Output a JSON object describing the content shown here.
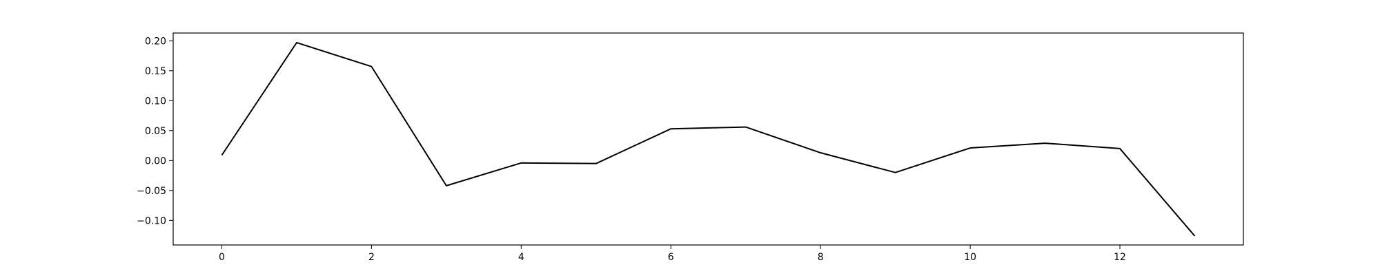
{
  "chart_data": {
    "type": "line",
    "title": "",
    "xlabel": "",
    "ylabel": "",
    "x": [
      0,
      1,
      2,
      3,
      4,
      5,
      6,
      7,
      8,
      9,
      10,
      11,
      12,
      13
    ],
    "series": [
      {
        "values": [
          0.009,
          0.197,
          0.157,
          -0.042,
          -0.004,
          -0.005,
          0.053,
          0.056,
          0.013,
          -0.02,
          0.021,
          0.029,
          0.02,
          -0.126
        ],
        "color": "#000000"
      }
    ],
    "xlim": [
      -0.65,
      13.65
    ],
    "ylim": [
      -0.141,
      0.213
    ],
    "xticks": [
      0,
      2,
      4,
      6,
      8,
      10,
      12
    ],
    "yticks": [
      -0.1,
      -0.05,
      0.0,
      0.05,
      0.1,
      0.15,
      0.2
    ],
    "xtick_labels": [
      "0",
      "2",
      "4",
      "6",
      "8",
      "10",
      "12"
    ],
    "ytick_labels": [
      "−0.10",
      "−0.05",
      "0.00",
      "0.05",
      "0.10",
      "0.15",
      "0.20"
    ],
    "grid": false,
    "legend": "none"
  }
}
